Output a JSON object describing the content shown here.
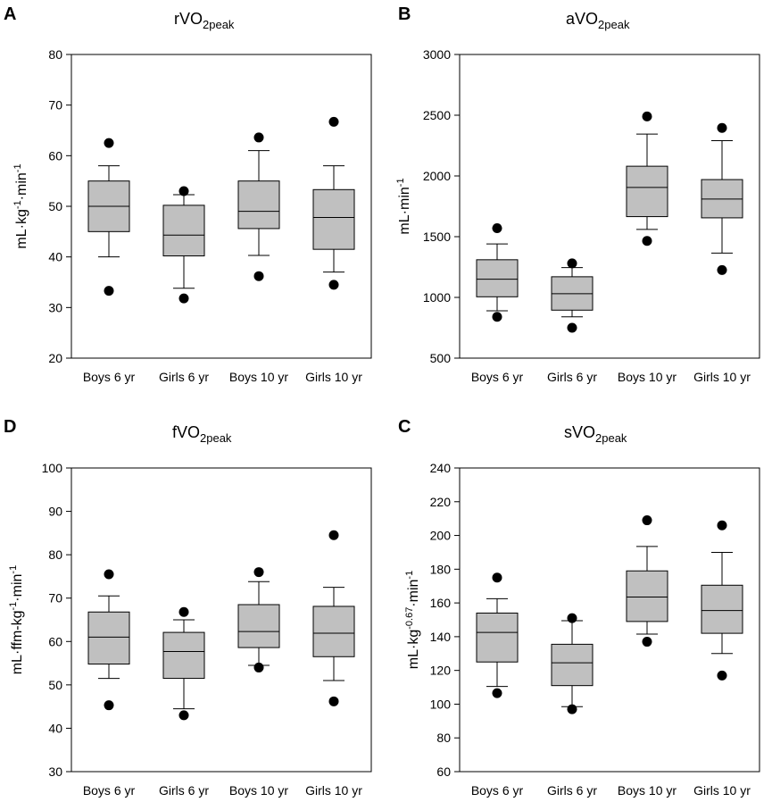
{
  "chart_data": [
    {
      "type": "box",
      "letter": "A",
      "title_main": "rVO",
      "title_sub": "2peak",
      "ylabel": [
        {
          "t": "mL·kg",
          "s": false
        },
        {
          "t": "-1",
          "s": true
        },
        {
          "t": "·min",
          "s": false
        },
        {
          "t": "-1",
          "s": true
        }
      ],
      "ylim": [
        20,
        80
      ],
      "yticks": [
        20,
        30,
        40,
        50,
        60,
        70,
        80
      ],
      "categories": [
        "Boys 6 yr",
        "Girls 6 yr",
        "Boys 10 yr",
        "Girls 10 yr"
      ],
      "boxes": [
        {
          "low": 40,
          "q1": 45,
          "median": 50,
          "q3": 55,
          "high": 58,
          "outliers": [
            33.3,
            62.5
          ]
        },
        {
          "low": 33.8,
          "q1": 40.2,
          "median": 44.3,
          "q3": 50.2,
          "high": 52.3,
          "outliers": [
            31.8,
            53
          ]
        },
        {
          "low": 40.3,
          "q1": 45.6,
          "median": 49,
          "q3": 55,
          "high": 61,
          "outliers": [
            36.2,
            63.6
          ]
        },
        {
          "low": 37,
          "q1": 41.5,
          "median": 47.8,
          "q3": 53.3,
          "high": 58,
          "outliers": [
            34.5,
            66.7
          ]
        }
      ]
    },
    {
      "type": "box",
      "letter": "B",
      "title_main": "aVO",
      "title_sub": "2peak",
      "ylabel": [
        {
          "t": "mL·min",
          "s": false
        },
        {
          "t": "-1",
          "s": true
        }
      ],
      "ylim": [
        500,
        3000
      ],
      "yticks": [
        500,
        1000,
        1500,
        2000,
        2500,
        3000
      ],
      "categories": [
        "Boys 6 yr",
        "Girls 6 yr",
        "Boys 10 yr",
        "Girls 10 yr"
      ],
      "boxes": [
        {
          "low": 890,
          "q1": 1005,
          "median": 1150,
          "q3": 1310,
          "high": 1440,
          "outliers": [
            840,
            1570
          ]
        },
        {
          "low": 840,
          "q1": 895,
          "median": 1030,
          "q3": 1170,
          "high": 1245,
          "outliers": [
            750,
            1280
          ]
        },
        {
          "low": 1560,
          "q1": 1665,
          "median": 1905,
          "q3": 2080,
          "high": 2345,
          "outliers": [
            1465,
            2490
          ]
        },
        {
          "low": 1365,
          "q1": 1655,
          "median": 1810,
          "q3": 1970,
          "high": 2290,
          "outliers": [
            1225,
            2395
          ]
        }
      ]
    },
    {
      "type": "box",
      "letter": "D",
      "title_main": "fVO",
      "title_sub": "2peak",
      "ylabel": [
        {
          "t": "mL·ffm-kg",
          "s": false
        },
        {
          "t": "-1",
          "s": true
        },
        {
          "t": "·min",
          "s": false
        },
        {
          "t": "-1",
          "s": true
        }
      ],
      "ylim": [
        30,
        100
      ],
      "yticks": [
        30,
        40,
        50,
        60,
        70,
        80,
        90,
        100
      ],
      "categories": [
        "Boys 6 yr",
        "Girls 6 yr",
        "Boys 10 yr",
        "Girls 10 yr"
      ],
      "boxes": [
        {
          "low": 51.5,
          "q1": 54.8,
          "median": 61,
          "q3": 66.8,
          "high": 70.5,
          "outliers": [
            45.3,
            75.5
          ]
        },
        {
          "low": 44.5,
          "q1": 51.5,
          "median": 57.7,
          "q3": 62.1,
          "high": 65,
          "outliers": [
            43,
            66.8
          ]
        },
        {
          "low": 54.5,
          "q1": 58.6,
          "median": 62.3,
          "q3": 68.5,
          "high": 73.8,
          "outliers": [
            54,
            76
          ]
        },
        {
          "low": 51,
          "q1": 56.5,
          "median": 61.9,
          "q3": 68.1,
          "high": 72.5,
          "outliers": [
            46.2,
            84.5
          ]
        }
      ]
    },
    {
      "type": "box",
      "letter": "C",
      "title_main": "sVO",
      "title_sub": "2peak",
      "ylabel": [
        {
          "t": "mL·kg",
          "s": false
        },
        {
          "t": "-0.67",
          "s": true
        },
        {
          "t": "·min",
          "s": false
        },
        {
          "t": "-1",
          "s": true
        }
      ],
      "ylim": [
        60,
        240
      ],
      "yticks": [
        60,
        80,
        100,
        120,
        140,
        160,
        180,
        200,
        220,
        240
      ],
      "categories": [
        "Boys 6 yr",
        "Girls 6 yr",
        "Boys 10 yr",
        "Girls 10 yr"
      ],
      "boxes": [
        {
          "low": 110.5,
          "q1": 125,
          "median": 142.5,
          "q3": 154,
          "high": 162.5,
          "outliers": [
            106.5,
            175
          ]
        },
        {
          "low": 98.5,
          "q1": 111,
          "median": 124.5,
          "q3": 135.5,
          "high": 149.5,
          "outliers": [
            97,
            151
          ]
        },
        {
          "low": 141.5,
          "q1": 149,
          "median": 163.5,
          "q3": 179,
          "high": 193.5,
          "outliers": [
            137,
            209
          ]
        },
        {
          "low": 130,
          "q1": 142,
          "median": 155.5,
          "q3": 170.5,
          "high": 190,
          "outliers": [
            117,
            206
          ]
        }
      ]
    }
  ]
}
